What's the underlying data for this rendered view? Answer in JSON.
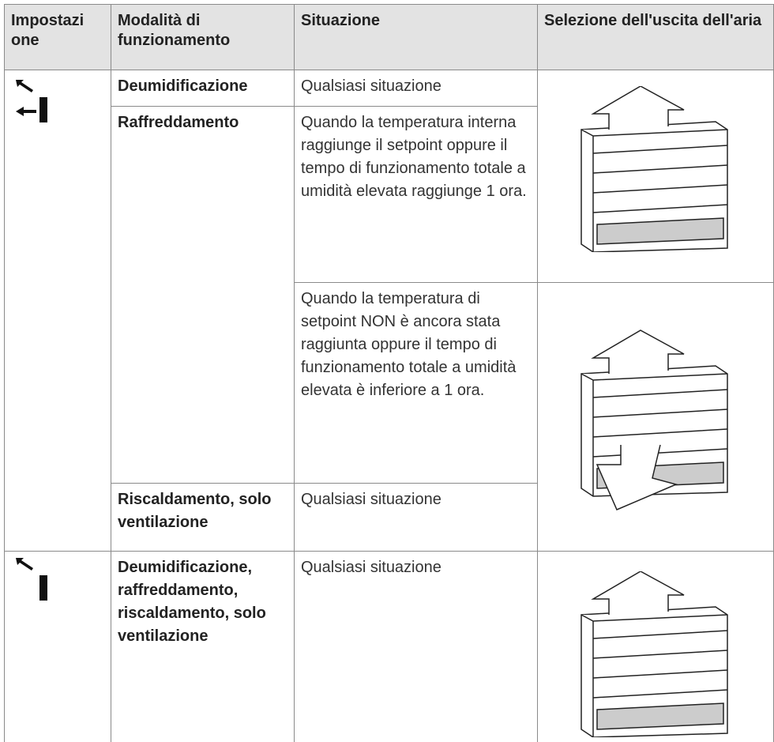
{
  "table": {
    "header": [
      "Impostazione",
      "Modalità di funzionamento",
      "Situazione",
      "Selezione dell'uscita dell'aria"
    ],
    "rows": [
      {
        "mode": "Deumidificazione",
        "situation": "Qualsiasi situazione"
      },
      {
        "mode": "Raffreddamento",
        "situation": "Quando la temperatura interna raggiunge il setpoint oppure il tempo di funzionamento totale a umidità elevata raggiunge 1 ora."
      },
      {
        "situation": "Quando la temperatura di setpoint NON è ancora stata raggiunta oppure il tempo di funzionamento totale a umidità elevata è inferiore a 1 ora."
      },
      {
        "mode": "Riscaldamento, solo ventilazione",
        "situation": "Qualsiasi situazione"
      },
      {
        "mode": "Deumidificazione, raffreddamento, riscaldamento, solo ventilazione",
        "situation": "Qualsiasi situazione"
      }
    ]
  }
}
